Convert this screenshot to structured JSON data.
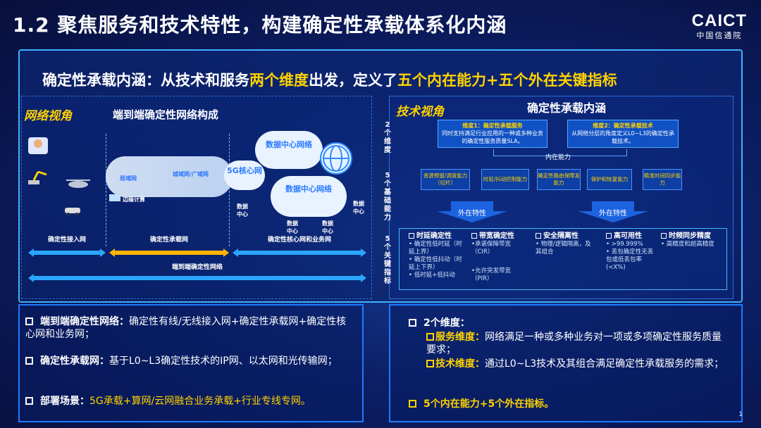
{
  "title": "1.2 聚焦服务和技术特性，构建确定性承载体系化内涵",
  "logo": {
    "name": "CAICT",
    "sub": "中国信通院"
  },
  "subtitle": {
    "part1": "确定性承载内涵：从技术和服务",
    "hl1": "两个维度",
    "part2": "出发，定义了",
    "hl2": "五个内在能力+五个外在关键指标"
  },
  "network_view": {
    "label": "网络视角",
    "heading": "端到端确定性网络构成",
    "nodes": {
      "metro": "局域网",
      "wan": "城域网/广域网",
      "core": "5G核心网",
      "dc1": "数据中心网络",
      "dc2": "数据中心网络",
      "edge": "边缘计算",
      "dc_a": "数据中心",
      "dc_b": "数据中心",
      "dc_c": "数据中心",
      "dc_d": "数据中心"
    },
    "segments": {
      "access": "确定性接入网",
      "bearer": "确定性承载网",
      "core": "确定性核心网和业务网",
      "e2e": "端到端确定性网络"
    }
  },
  "tech_view": {
    "label": "技术视角",
    "heading": "确定性承载内涵",
    "side_labels": {
      "dims": "2个维度",
      "caps": "5个基础能力",
      "kpis": "5个关键指标"
    },
    "dim1": {
      "title": "维度1：确定性承载服务",
      "body": "同时支持满足行业应用的一种或多种业务的确定性服务质量SLA。"
    },
    "dim2": {
      "title": "维度2：确定性承载技术",
      "body": "从网络分层的角度定义L0~L3的确定性承载技术。"
    },
    "inner": "内在能力",
    "capabilities": [
      "资源预留/调度能力（切片）",
      "时延/抖动控制能力",
      "确定性路由保障发能力",
      "保护和恢复能力",
      "精准时间同步能力"
    ],
    "outer": [
      "外在特性",
      "外在特性"
    ],
    "kpis": [
      {
        "title": "时延确定性",
        "lines": [
          "• 确定性低时延（时延上界）",
          "• 确定性低抖动（时延上下界）",
          "• 低时延+低抖动"
        ]
      },
      {
        "title": "带宽确定性",
        "lines": [
          "•承诺保障带宽（CIR）",
          "•允许突发带宽（PIR）"
        ]
      },
      {
        "title": "安全隔离性",
        "lines": [
          "• 物理/逻辑隔离，及其组合"
        ]
      },
      {
        "title": "高可用性",
        "lines": [
          "• >99.999%",
          "• 丢包确定性无丢包或低丢包率(<X%)"
        ]
      },
      {
        "title": "时频同步精度",
        "lines": [
          "• 高精度和超高精度"
        ]
      }
    ]
  },
  "bottom_left": [
    {
      "key": "端到端确定性网络：",
      "text": "确定性有线/无线接入网+确定性承载网+确定性核心网和业务网；"
    },
    {
      "key": "确定性承载网：",
      "text": "基于L0~L3确定性技术的IP网、以太网和光传输网；"
    },
    {
      "key": "部署场景：",
      "text": "5G承载+算网/云网融合业务承载+行业专线专网。"
    }
  ],
  "bottom_right": {
    "head": "2个维度：",
    "items": [
      {
        "key": "服务维度：",
        "text": "网络满足一种或多种业务对一项或多项确定性服务质量要求；"
      },
      {
        "key": "技术维度：",
        "text": "通过L0~L3技术及其组合满足确定性承载服务的需求；"
      }
    ],
    "last": "5个内在能力+5个外在指标。"
  },
  "page_number": "1",
  "colors": {
    "accent": "#ffd200",
    "frame": "#3fb2ff",
    "bg": "#0c1f66",
    "arrow_blue": "#2aa6ff",
    "arrow_yellow": "#ffb400"
  }
}
